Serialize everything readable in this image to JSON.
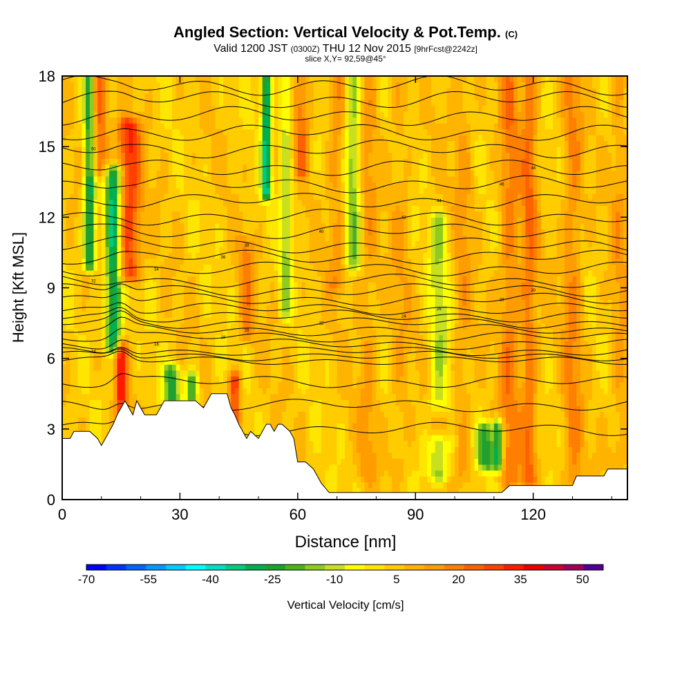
{
  "title": {
    "main": "Angled Section: Vertical Velocity & Pot.Temp.",
    "copyright": "(C)",
    "valid_prefix": "Valid 1200 JST",
    "valid_utc": "(0300Z)",
    "valid_date": "THU 12 Nov 2015",
    "forecast": "[9hrFcst@2242z]",
    "slice": "slice X,Y= 92,59@45°"
  },
  "chart_data": {
    "type": "heatmap",
    "title": "Angled Section: Vertical Velocity & Pot.Temp.",
    "xlabel": "Distance [nm]",
    "ylabel": "Height [Kft MSL]",
    "xlim": [
      0,
      144
    ],
    "ylim": [
      0,
      18
    ],
    "x_ticks": [
      0,
      30,
      60,
      90,
      120
    ],
    "y_ticks": [
      0,
      3,
      6,
      9,
      12,
      15,
      18
    ],
    "fill_variable": "Vertical Velocity",
    "contour_variable": "Potential Temperature",
    "colorbar": {
      "label": "Vertical Velocity [cm/s]",
      "tick_labels": [
        "-70",
        "-55",
        "-40",
        "-25",
        "-10",
        "5",
        "20",
        "35",
        "50"
      ],
      "tick_values": [
        -70,
        -55,
        -40,
        -25,
        -10,
        5,
        20,
        35,
        50
      ],
      "range": [
        -70,
        55
      ],
      "step": 5,
      "colors": [
        "#0000ff",
        "#0033ff",
        "#0066ff",
        "#0099ff",
        "#00ccff",
        "#00ffff",
        "#00e0c0",
        "#00cc80",
        "#00b050",
        "#20a030",
        "#50b020",
        "#90cc20",
        "#c8e020",
        "#ffff00",
        "#ffe600",
        "#ffcc00",
        "#ffb400",
        "#ff9c00",
        "#ff8000",
        "#ff6000",
        "#ff4000",
        "#ff1a00",
        "#e80000",
        "#cc0033",
        "#a0005a",
        "#500090"
      ]
    },
    "terrain_profile": {
      "distance_nm": [
        0,
        2,
        3,
        7,
        9,
        10,
        11,
        12,
        13,
        14,
        15,
        16,
        17,
        18,
        19,
        20,
        21,
        24,
        25,
        26,
        29,
        34,
        36,
        38,
        42,
        43,
        44,
        45,
        46,
        47,
        48,
        50,
        51,
        52,
        53,
        54,
        55,
        56,
        58,
        59,
        60,
        62,
        64,
        66,
        68,
        80,
        95,
        104,
        112,
        114,
        120,
        124,
        130,
        131,
        138,
        139,
        144
      ],
      "height_kft": [
        2.6,
        2.6,
        2.9,
        2.9,
        2.6,
        2.3,
        2.6,
        2.9,
        3.2,
        3.6,
        3.9,
        4.2,
        3.9,
        3.6,
        4.2,
        3.9,
        3.6,
        3.6,
        3.9,
        4.2,
        4.2,
        4.2,
        3.9,
        4.5,
        4.5,
        3.9,
        3.6,
        3.2,
        2.9,
        2.6,
        2.9,
        2.6,
        2.9,
        3.2,
        3.2,
        2.9,
        3.2,
        3.2,
        2.9,
        2.6,
        1.6,
        1.6,
        1.3,
        0.7,
        0.3,
        0.3,
        0.3,
        0.3,
        0.3,
        0.6,
        0.6,
        0.6,
        0.6,
        1.0,
        1.0,
        1.3,
        1.3
      ]
    },
    "updraft_bands": [
      {
        "center_nm": 9,
        "zmin_kft": 14,
        "zmax_kft": 18,
        "width_nm": 2.5,
        "w_cm_s": 30
      },
      {
        "center_nm": 17,
        "zmin_kft": 9.5,
        "zmax_kft": 16,
        "width_nm": 3,
        "w_cm_s": 34
      },
      {
        "center_nm": 15,
        "zmin_kft": 3.6,
        "zmax_kft": 6.5,
        "width_nm": 1.5,
        "w_cm_s": 36
      },
      {
        "center_nm": 44,
        "zmin_kft": 3.2,
        "zmax_kft": 5.2,
        "width_nm": 1.5,
        "w_cm_s": 34
      },
      {
        "center_nm": 47,
        "zmin_kft": 7,
        "zmax_kft": 11,
        "width_nm": 2,
        "w_cm_s": 20
      },
      {
        "center_nm": 61,
        "zmin_kft": 14,
        "zmax_kft": 18,
        "width_nm": 2,
        "w_cm_s": 24
      },
      {
        "center_nm": 70,
        "zmin_kft": 9,
        "zmax_kft": 18,
        "width_nm": 2.5,
        "w_cm_s": 18
      },
      {
        "center_nm": 78,
        "zmin_kft": 1,
        "zmax_kft": 18,
        "width_nm": 2.5,
        "w_cm_s": 16
      },
      {
        "center_nm": 86,
        "zmin_kft": 1,
        "zmax_kft": 18,
        "width_nm": 2.5,
        "w_cm_s": 14
      },
      {
        "center_nm": 102,
        "zmin_kft": 1,
        "zmax_kft": 18,
        "width_nm": 2.5,
        "w_cm_s": 16
      },
      {
        "center_nm": 114,
        "zmin_kft": 0.8,
        "zmax_kft": 18,
        "width_nm": 2.5,
        "w_cm_s": 22
      },
      {
        "center_nm": 119,
        "zmin_kft": 0.8,
        "zmax_kft": 18,
        "width_nm": 2,
        "w_cm_s": 24
      },
      {
        "center_nm": 130,
        "zmin_kft": 0.8,
        "zmax_kft": 18,
        "width_nm": 2.5,
        "w_cm_s": 20
      },
      {
        "center_nm": 142,
        "zmin_kft": 1.5,
        "zmax_kft": 18,
        "width_nm": 2,
        "w_cm_s": 16
      }
    ],
    "downdraft_bands": [
      {
        "center_nm": 7,
        "zmin_kft": 10,
        "zmax_kft": 18,
        "width_nm": 1.5,
        "w_cm_s": -30
      },
      {
        "center_nm": 13,
        "zmin_kft": 6.5,
        "zmax_kft": 14,
        "width_nm": 2,
        "w_cm_s": -32
      },
      {
        "center_nm": 28,
        "zmin_kft": 4.2,
        "zmax_kft": 5.5,
        "width_nm": 2,
        "w_cm_s": -22
      },
      {
        "center_nm": 33,
        "zmin_kft": 4.2,
        "zmax_kft": 5.2,
        "width_nm": 1.5,
        "w_cm_s": -20
      },
      {
        "center_nm": 52,
        "zmin_kft": 13,
        "zmax_kft": 18,
        "width_nm": 1.2,
        "w_cm_s": -34
      },
      {
        "center_nm": 57,
        "zmin_kft": 8,
        "zmax_kft": 18,
        "width_nm": 1.5,
        "w_cm_s": -10
      },
      {
        "center_nm": 74,
        "zmin_kft": 10,
        "zmax_kft": 18,
        "width_nm": 2,
        "w_cm_s": -14
      },
      {
        "center_nm": 96,
        "zmin_kft": 4,
        "zmax_kft": 12,
        "width_nm": 2.5,
        "w_cm_s": -8
      },
      {
        "center_nm": 108,
        "zmin_kft": 1.5,
        "zmax_kft": 3,
        "width_nm": 2.5,
        "w_cm_s": -20
      },
      {
        "center_nm": 111,
        "zmin_kft": 1.5,
        "zmax_kft": 3.2,
        "width_nm": 1.2,
        "w_cm_s": -24
      },
      {
        "center_nm": 96,
        "zmin_kft": 1,
        "zmax_kft": 2.5,
        "width_nm": 3,
        "w_cm_s": -12
      }
    ],
    "isentrope_heights_kft": [
      5.9,
      6.1,
      6.3,
      6.6,
      6.9,
      7.2,
      7.5,
      7.8,
      8.1,
      8.5,
      8.9,
      9.3,
      9.8,
      10.3,
      10.8,
      11.4,
      12.0,
      12.7,
      13.4,
      14.1,
      14.9,
      15.6,
      16.3,
      17.0,
      17.6
    ],
    "low_level_isentropes_kft": [
      3.0,
      4.0,
      5.0
    ],
    "isentrope_labels": [
      "14",
      "16",
      "18",
      "20",
      "22",
      "24",
      "26",
      "28",
      "30",
      "32",
      "34",
      "36",
      "38",
      "40",
      "42",
      "44",
      "46",
      "48",
      "50"
    ]
  }
}
